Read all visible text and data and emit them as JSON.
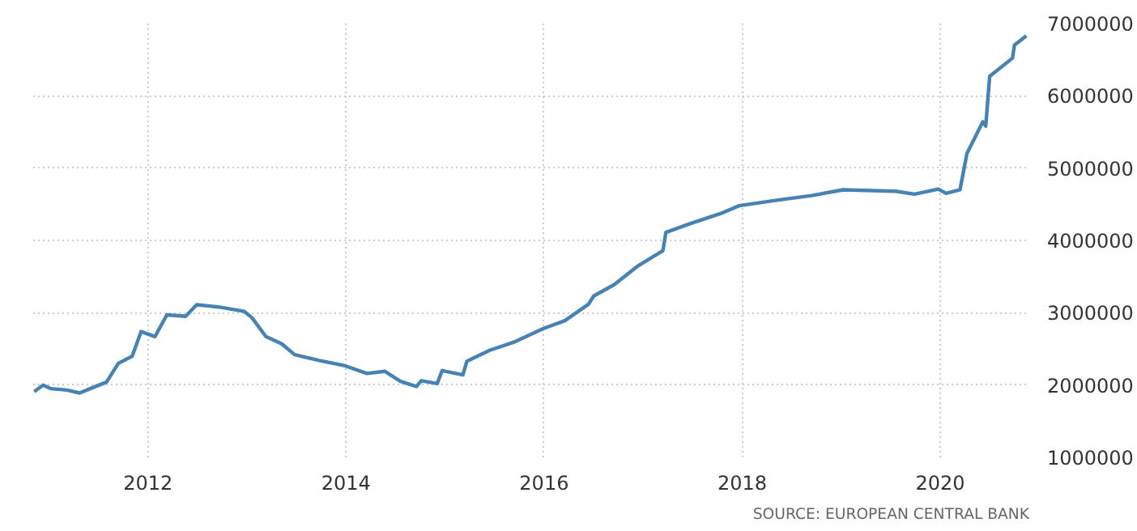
{
  "chart_data": {
    "type": "line",
    "x": [
      2010.85,
      2010.94,
      2011.02,
      2011.18,
      2011.31,
      2011.45,
      2011.58,
      2011.7,
      2011.84,
      2011.93,
      2012.07,
      2012.19,
      2012.38,
      2012.49,
      2012.71,
      2012.97,
      2013.05,
      2013.19,
      2013.35,
      2013.48,
      2013.73,
      2013.98,
      2014.21,
      2014.39,
      2014.55,
      2014.71,
      2014.76,
      2014.92,
      2014.97,
      2015.18,
      2015.22,
      2015.45,
      2015.69,
      2015.99,
      2016.21,
      2016.45,
      2016.5,
      2016.71,
      2016.95,
      2017.2,
      2017.23,
      2017.49,
      2017.78,
      2017.97,
      2018.32,
      2018.7,
      2019.02,
      2019.55,
      2019.74,
      2019.98,
      2020.06,
      2020.2,
      2020.27,
      2020.43,
      2020.46,
      2020.5,
      2020.73,
      2020.75,
      2020.87
    ],
    "series": [
      {
        "color": "#4682b4",
        "values": [
          1910000,
          2000000,
          1950000,
          1930000,
          1890000,
          1970000,
          2040000,
          2300000,
          2400000,
          2740000,
          2670000,
          2970000,
          2950000,
          3110000,
          3080000,
          3020000,
          2930000,
          2670000,
          2570000,
          2420000,
          2340000,
          2270000,
          2160000,
          2190000,
          2050000,
          1980000,
          2060000,
          2020000,
          2200000,
          2140000,
          2330000,
          2480000,
          2590000,
          2780000,
          2890000,
          3120000,
          3230000,
          3390000,
          3650000,
          3860000,
          4110000,
          4240000,
          4370000,
          4480000,
          4550000,
          4620000,
          4700000,
          4680000,
          4640000,
          4710000,
          4650000,
          4700000,
          5200000,
          5640000,
          5580000,
          6270000,
          6520000,
          6700000,
          6830000
        ]
      }
    ],
    "xlim": [
      2010.84,
      2020.9
    ],
    "ylim": [
      1000000,
      7000000
    ],
    "xticks": [
      2012,
      2014,
      2016,
      2018,
      2020
    ],
    "yticks": [
      1000000,
      2000000,
      3000000,
      4000000,
      5000000,
      6000000,
      7000000
    ],
    "grid": true,
    "line_style": "solid",
    "annotations": [
      "SOURCE: EUROPEAN CENTRAL BANK"
    ]
  }
}
